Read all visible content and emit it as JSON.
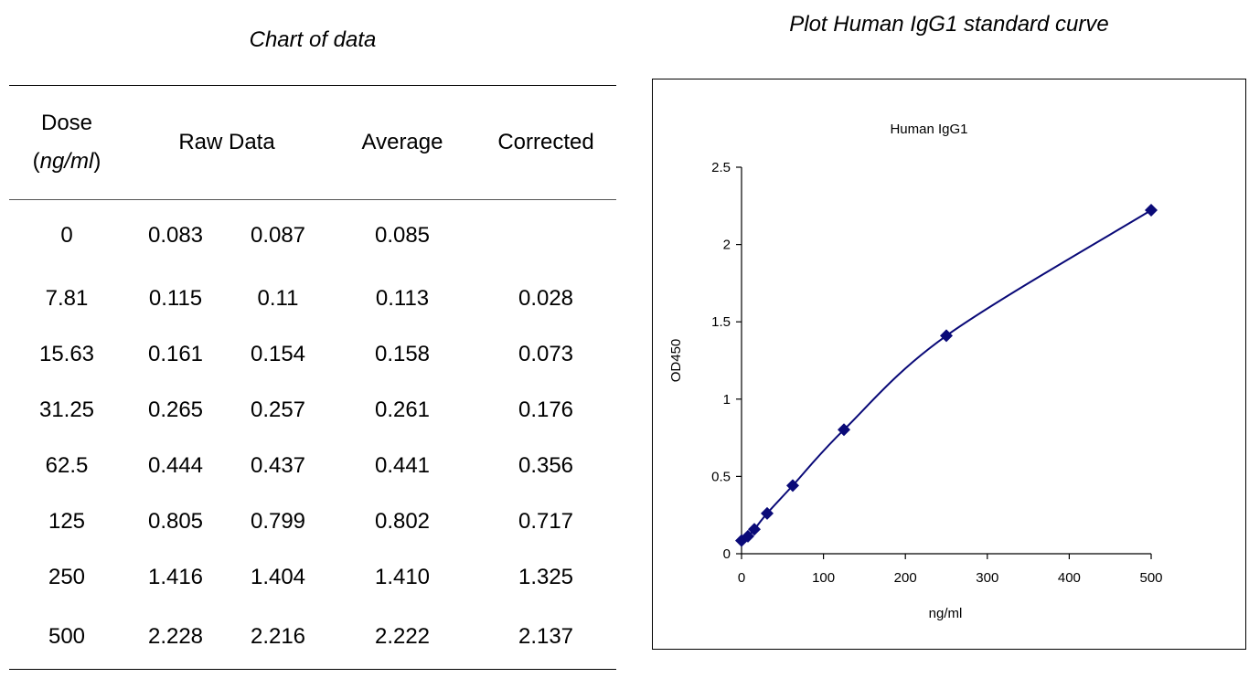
{
  "table": {
    "title": "Chart of data",
    "headers": {
      "dose": "Dose",
      "dose_unit": "ng/ml",
      "raw": "Raw Data",
      "average": "Average",
      "corrected": "Corrected"
    },
    "rows": [
      {
        "dose": "0",
        "raw1": "0.083",
        "raw2": "0.087",
        "average": "0.085",
        "corrected": ""
      },
      {
        "dose": "7.81",
        "raw1": "0.115",
        "raw2": "0.11",
        "average": "0.113",
        "corrected": "0.028"
      },
      {
        "dose": "15.63",
        "raw1": "0.161",
        "raw2": "0.154",
        "average": "0.158",
        "corrected": "0.073"
      },
      {
        "dose": "31.25",
        "raw1": "0.265",
        "raw2": "0.257",
        "average": "0.261",
        "corrected": "0.176"
      },
      {
        "dose": "62.5",
        "raw1": "0.444",
        "raw2": "0.437",
        "average": "0.441",
        "corrected": "0.356"
      },
      {
        "dose": "125",
        "raw1": "0.805",
        "raw2": "0.799",
        "average": "0.802",
        "corrected": "0.717"
      },
      {
        "dose": "250",
        "raw1": "1.416",
        "raw2": "1.404",
        "average": "1.410",
        "corrected": "1.325"
      },
      {
        "dose": "500",
        "raw1": "2.228",
        "raw2": "2.216",
        "average": "2.222",
        "corrected": "2.137"
      }
    ]
  },
  "chart_data": {
    "type": "line",
    "page_title": "Plot Human IgG1 standard curve",
    "title": "Human IgG1",
    "xlabel": "ng/ml",
    "ylabel": "OD450",
    "xlim": [
      0,
      500
    ],
    "ylim": [
      0,
      2.5
    ],
    "xticks": [
      0,
      100,
      200,
      300,
      400,
      500
    ],
    "yticks": [
      0,
      0.5,
      1,
      1.5,
      2,
      2.5
    ],
    "ytick_labels": [
      "0",
      "0.5",
      "1",
      "1.5",
      "2",
      "2.5"
    ],
    "grid": false,
    "series_color": "#0a0a78",
    "series": [
      {
        "x": [
          0,
          7.81,
          15.63,
          31.25,
          62.5,
          125,
          250,
          500
        ],
        "y": [
          0.085,
          0.113,
          0.158,
          0.261,
          0.441,
          0.802,
          1.41,
          2.222
        ]
      }
    ]
  }
}
